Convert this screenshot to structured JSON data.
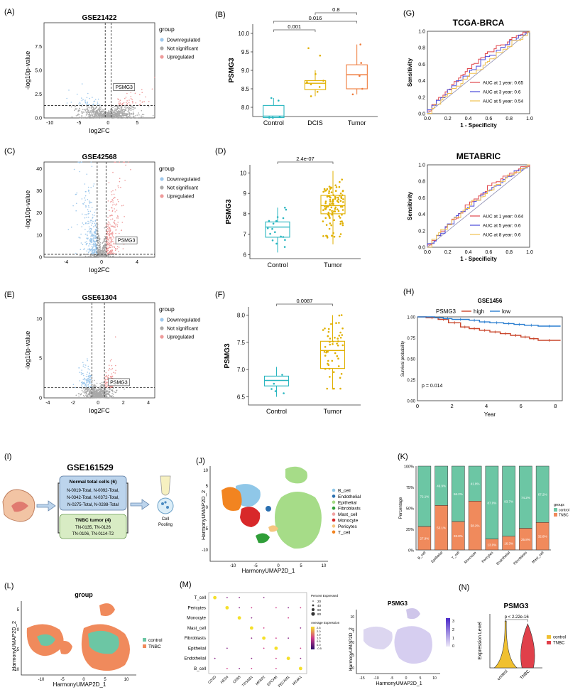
{
  "colors": {
    "down": "#9ec8ec",
    "ns": "#a8a8a8",
    "up": "#ee9a9a",
    "teal": "#2ab6c0",
    "gold": "#e0b000",
    "orange": "#ef7a3a",
    "red": "#e0474c",
    "blue": "#4a4ad8",
    "yellow": "#f0c050",
    "survHigh": "#c9452a",
    "survLow": "#2a7ed0",
    "green": "#6cc6a4",
    "salmon": "#f08a5c"
  },
  "chart_data": [
    {
      "id": "A",
      "type": "scatter",
      "subtype": "volcano",
      "title": "GSE21422",
      "xlabel": "log2FC",
      "ylabel": "-log10p-value",
      "xticks": [
        -10,
        -5,
        0,
        5
      ],
      "yticks": [
        0.0,
        2.5,
        5.0,
        7.5
      ],
      "xlim": [
        -11,
        8
      ],
      "ylim": [
        0,
        10
      ],
      "fc_cut": 0.5,
      "p_cut": 1.3,
      "annotation": "PSMG3",
      "annotation_x": 0.9,
      "annotation_y": 3.1,
      "legend_title": "group",
      "legend": [
        "Downregulated",
        "Not significant",
        "Upregulated"
      ],
      "spread": [
        5.0,
        1.5
      ],
      "seed": 11
    },
    {
      "id": "B",
      "type": "box",
      "ylabel": "PSMG3",
      "categories": [
        "Control",
        "DCIS",
        "Tumor"
      ],
      "yticks": [
        8.0,
        8.5,
        9.0,
        9.5,
        10.0
      ],
      "ylim": [
        7.75,
        10.25
      ],
      "boxes": [
        {
          "q1": 7.72,
          "median": 7.76,
          "q3": 8.05,
          "low": 7.7,
          "high": 8.25
        },
        {
          "q1": 8.48,
          "median": 8.65,
          "q3": 8.72,
          "low": 8.3,
          "high": 9.0
        },
        {
          "q1": 8.5,
          "median": 8.88,
          "q3": 9.15,
          "low": 8.35,
          "high": 9.7
        }
      ],
      "points": [
        [
          7.72,
          7.72,
          7.74,
          8.18,
          8.25
        ],
        [
          8.3,
          8.42,
          8.55,
          8.62,
          8.68,
          8.72,
          8.9,
          9.4,
          9.6
        ],
        [
          8.35,
          8.5,
          8.85,
          9.2,
          9.7
        ]
      ],
      "pvalues": [
        {
          "text": "0.001",
          "from": 0,
          "to": 1
        },
        {
          "text": "0.016",
          "from": 0,
          "to": 2
        },
        {
          "text": "0.8",
          "from": 1,
          "to": 2
        }
      ]
    },
    {
      "id": "G",
      "type": "line",
      "subtype": "roc",
      "title": "TCGA-BRCA",
      "xlabel": "1 - Specificity",
      "ylabel": "Sensitivity",
      "ticks": [
        0.0,
        0.2,
        0.4,
        0.6,
        0.8,
        1.0
      ],
      "series": [
        {
          "name": "AUC at 1 year: 0.65",
          "color": "#e0474c",
          "auc": 0.65,
          "seed": 3
        },
        {
          "name": "AUC at 3 year: 0.6",
          "color": "#4a4ad8",
          "auc": 0.6,
          "seed": 7
        },
        {
          "name": "AUC at 5 year: 0.54",
          "color": "#f0c050",
          "auc": 0.54,
          "seed": 9
        }
      ]
    },
    {
      "id": "C",
      "type": "scatter",
      "subtype": "volcano",
      "title": "GSE42568",
      "xlabel": "log2FC",
      "ylabel": "-log10p-value",
      "xticks": [
        -4,
        0,
        4
      ],
      "yticks": [
        0,
        10,
        20,
        30,
        40
      ],
      "xlim": [
        -6.5,
        6
      ],
      "ylim": [
        0,
        43
      ],
      "fc_cut": 0.5,
      "p_cut": 1.3,
      "annotation": "PSMG3",
      "annotation_x": 1.6,
      "annotation_y": 7,
      "legend_title": "group",
      "legend": [
        "Downregulated",
        "Not significant",
        "Upregulated"
      ],
      "spread": [
        2.2,
        8
      ],
      "seed": 21
    },
    {
      "id": "D",
      "type": "box",
      "ylabel": "PSMG3",
      "categories": [
        "Control",
        "Tumor"
      ],
      "yticks": [
        6,
        7,
        8,
        9,
        10
      ],
      "ylim": [
        5.8,
        10.4
      ],
      "boxes": [
        {
          "q1": 6.85,
          "median": 7.35,
          "q3": 7.6,
          "low": 6.1,
          "high": 8.3
        },
        {
          "q1": 8.0,
          "median": 8.4,
          "q3": 8.9,
          "low": 6.5,
          "high": 10.1
        }
      ],
      "npoints": [
        17,
        104
      ],
      "pvalues": [
        {
          "text": "2.4e-07",
          "from": 0,
          "to": 1
        }
      ]
    },
    {
      "id": "METABRIC",
      "type": "line",
      "subtype": "roc",
      "title": "METABRIC",
      "xlabel": "1 - Specificity",
      "ylabel": "Sensitivity",
      "ticks": [
        0.0,
        0.2,
        0.4,
        0.6,
        0.8,
        1.0
      ],
      "series": [
        {
          "name": "AUC at 1 year: 0.64",
          "color": "#e0474c",
          "auc": 0.64,
          "seed": 13
        },
        {
          "name": "AUC at 5 year: 0.6",
          "color": "#4a4ad8",
          "auc": 0.6,
          "seed": 17
        },
        {
          "name": "AUC at 8 year: 0.6",
          "color": "#f0c050",
          "auc": 0.6,
          "seed": 19
        }
      ]
    },
    {
      "id": "E",
      "type": "scatter",
      "subtype": "volcano",
      "title": "GSE61304",
      "xlabel": "log2FC",
      "ylabel": "-log10p-value",
      "xticks": [
        -4,
        -2,
        0,
        2,
        4
      ],
      "yticks": [
        0,
        5,
        10
      ],
      "xlim": [
        -4.3,
        4.5
      ],
      "ylim": [
        0,
        12
      ],
      "fc_cut": 0.5,
      "p_cut": 1.3,
      "annotation": "PSMG3",
      "annotation_x": 0.8,
      "annotation_y": 1.8,
      "legend_title": "group",
      "legend": [
        "Downregulated",
        "Not significant",
        "Upregulated"
      ],
      "spread": [
        1.3,
        2.4
      ],
      "seed": 31
    },
    {
      "id": "F",
      "type": "box",
      "ylabel": "PSMG3",
      "categories": [
        "Control",
        "Tumor"
      ],
      "yticks": [
        6.5,
        7.0,
        7.5,
        8.0
      ],
      "ylim": [
        6.35,
        8.15
      ],
      "boxes": [
        {
          "q1": 6.7,
          "median": 6.8,
          "q3": 6.88,
          "low": 6.5,
          "high": 7.05
        },
        {
          "q1": 7.02,
          "median": 7.35,
          "q3": 7.52,
          "low": 6.65,
          "high": 8.0
        }
      ],
      "npoints": [
        5,
        50
      ],
      "pvalues": [
        {
          "text": "0.0087",
          "from": 0,
          "to": 1
        }
      ]
    },
    {
      "id": "H",
      "type": "line",
      "subtype": "survival",
      "title": "GSE1456",
      "xlabel": "Year",
      "ylabel": "Survival probability",
      "xticks": [
        0,
        2,
        4,
        6,
        8
      ],
      "yticks": [
        "0.00",
        "0.25",
        "0.50",
        "0.75",
        "1.00"
      ],
      "legend_title": "PSMG3",
      "legend": [
        "high",
        "low"
      ],
      "pvalue": "p = 0.014",
      "series": [
        {
          "name": "high",
          "x": [
            0,
            0.5,
            1.2,
            1.8,
            2.5,
            3.0,
            3.6,
            4.2,
            4.8,
            5.4,
            6.0,
            6.5,
            7.0,
            8.3
          ],
          "y": [
            1.0,
            0.99,
            0.97,
            0.93,
            0.88,
            0.86,
            0.84,
            0.82,
            0.8,
            0.78,
            0.76,
            0.74,
            0.72,
            0.72
          ]
        },
        {
          "name": "low",
          "x": [
            0,
            1.0,
            1.5,
            2.0,
            3.0,
            3.6,
            4.2,
            5.0,
            5.6,
            6.2,
            7.0,
            8.3
          ],
          "y": [
            1.0,
            0.99,
            0.98,
            0.97,
            0.96,
            0.94,
            0.93,
            0.92,
            0.91,
            0.9,
            0.89,
            0.89
          ]
        }
      ]
    },
    {
      "id": "K",
      "type": "bar",
      "subtype": "stacked-percent",
      "ylabel": "Percentage",
      "yticks": [
        "0%",
        "25%",
        "50%",
        "75%",
        "100%"
      ],
      "categories": [
        "B_cell",
        "Epithelial",
        "T_cell",
        "Monocyte",
        "Pericytes",
        "Endothelial",
        "Fibroblasts",
        "Mast_cell"
      ],
      "series": [
        {
          "name": "control",
          "values": [
            72.1,
            46.9,
            66.2,
            41.8,
            87.0,
            83.7,
            74.2,
            67.2
          ]
        },
        {
          "name": "TNBC",
          "values": [
            27.9,
            53.1,
            33.8,
            58.2,
            13.0,
            16.3,
            25.8,
            32.8
          ]
        }
      ],
      "legend_title": "group"
    },
    {
      "id": "M",
      "type": "scatter",
      "subtype": "dotplot",
      "rows": [
        "T_cell",
        "Pericytes",
        "Monocyte",
        "Mast_cell",
        "Fibroblasts",
        "Epithelial",
        "Endothelial",
        "B_cell"
      ],
      "cols": [
        "CD3D",
        "HES4",
        "CD68",
        "TPSAB1",
        "MFAP2",
        "EPCAM",
        "PECAM1",
        "MS4A1"
      ],
      "legend_size_title": "Percent Expressed",
      "legend_size_values": [
        "20",
        "40",
        "60",
        "80"
      ],
      "legend_color_title": "Average Expression",
      "legend_color_values": [
        "2.5",
        "2.0",
        "1.5",
        "1.0",
        "0.5",
        "0.0",
        "-0.5"
      ]
    },
    {
      "id": "N",
      "type": "violin",
      "title": "PSMG3",
      "ylabel": "Expression Level",
      "categories": [
        "control",
        "TNBC"
      ],
      "pvalue": "p < 2.22e-16",
      "legend": [
        "control",
        "TNBC"
      ]
    }
  ],
  "panels": {
    "A": "(A)",
    "B": "(B)",
    "G": "(G)",
    "C": "(C)",
    "D": "(D)",
    "E": "(E)",
    "F": "(F)",
    "H": "(H)",
    "I": "(I)",
    "J": "(J)",
    "K": "(K)",
    "L": "(L)",
    "M": "(M)",
    "N": "(N)"
  },
  "schematic": {
    "title": "GSE161529",
    "normal_title": "Normal total cells (6)",
    "normal_lines": [
      "N-0019-Total, N-0092-Total,",
      "N-0342-Total, N-0372-Total,",
      "N-0275-Total, N-0288-Total"
    ],
    "tnbc_title": "TNBC tumor (4)",
    "tnbc_lines": [
      "TN-0135, TN-0126",
      "TN-0106, TN-0114-T2"
    ],
    "pooling_lines": [
      "Cell",
      "Pooling"
    ]
  },
  "umap_j": {
    "xlabel": "HarmonyUMAP2D_1",
    "ylabel": "HarmonyUMAP2D_2",
    "xticks": [
      "-10",
      "-5",
      "0",
      "5",
      "10"
    ],
    "yticks": [
      "-10",
      "-5",
      "0",
      "5",
      "10"
    ],
    "legend": [
      {
        "name": "B_cell",
        "color": "#8fc7e8"
      },
      {
        "name": "Endothelial",
        "color": "#2a6fb0"
      },
      {
        "name": "Epithelial",
        "color": "#a6dc88"
      },
      {
        "name": "Fibroblasts",
        "color": "#2f9e38"
      },
      {
        "name": "Mast_cell",
        "color": "#f2a2a2"
      },
      {
        "name": "Monocyte",
        "color": "#d8282a"
      },
      {
        "name": "Pericytes",
        "color": "#f6c680"
      },
      {
        "name": "T_cell",
        "color": "#f28420"
      }
    ]
  },
  "umap_l": {
    "title": "group",
    "xlabel": "HarmonyUMAP2D_1",
    "ylabel": "HarmonyUMAP2D_2",
    "xticks": [
      "-10",
      "-5",
      "0",
      "5",
      "10"
    ],
    "yticks": [
      "-10",
      "-5",
      "0",
      "5"
    ],
    "legend": [
      "control",
      "TNBC"
    ]
  },
  "umap_psmg3": {
    "title": "PSMG3",
    "xlabel": "HarmonyUMAP2D_1",
    "ylabel": "HarmonyUMAP2D_2",
    "xticks": [
      "-15",
      "-10",
      "-5",
      "0",
      "5",
      "10"
    ],
    "yticks": [
      "-10",
      "-5",
      "0",
      "5",
      "10"
    ],
    "scale": [
      "3",
      "2",
      "1",
      "0"
    ]
  }
}
